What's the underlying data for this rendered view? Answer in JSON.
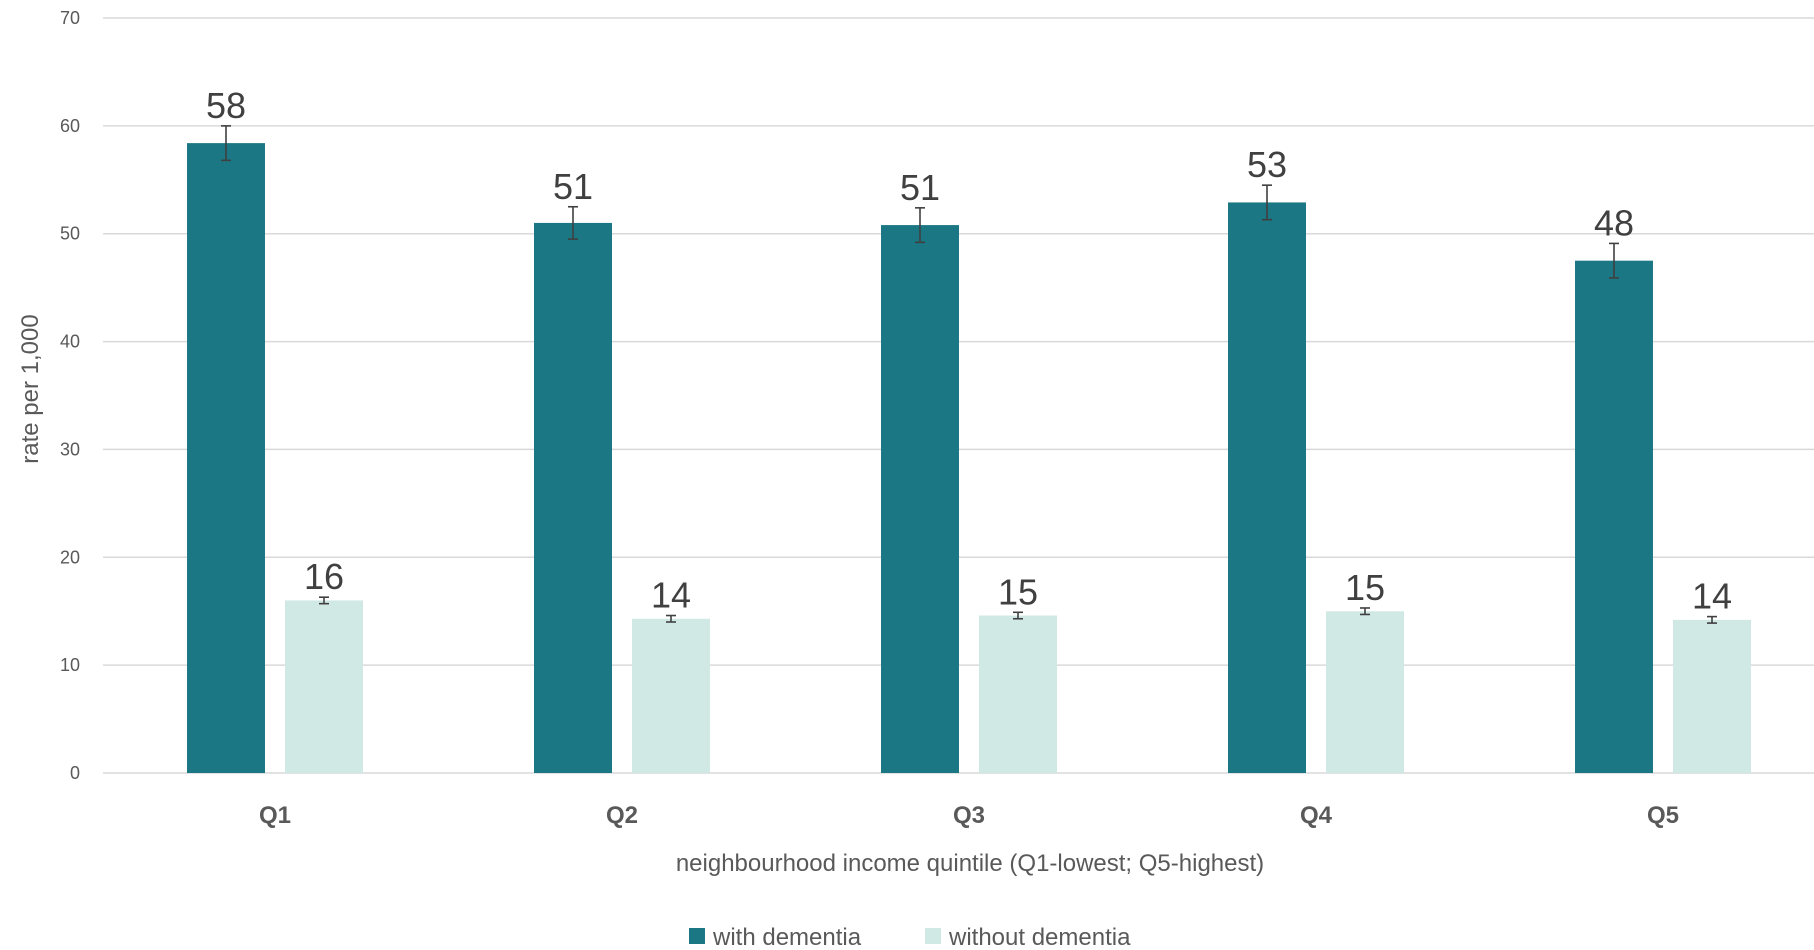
{
  "chart_data": {
    "type": "bar",
    "categories": [
      "Q1",
      "Q2",
      "Q3",
      "Q4",
      "Q5"
    ],
    "series": [
      {
        "name": "with dementia",
        "color": "#1a7783",
        "values": [
          58.4,
          51.0,
          50.8,
          52.9,
          47.5
        ],
        "labels": [
          "58",
          "51",
          "51",
          "53",
          "48"
        ],
        "error_low": [
          56.8,
          49.5,
          49.2,
          51.3,
          45.9
        ],
        "error_high": [
          60.0,
          52.5,
          52.4,
          54.5,
          49.1
        ]
      },
      {
        "name": "without dementia",
        "color": "#d1e9e5",
        "values": [
          16.0,
          14.3,
          14.6,
          15.0,
          14.2
        ],
        "labels": [
          "16",
          "14",
          "15",
          "15",
          "14"
        ],
        "error_low": [
          15.7,
          14.0,
          14.3,
          14.7,
          13.9
        ],
        "error_high": [
          16.3,
          14.6,
          14.9,
          15.3,
          14.5
        ]
      }
    ],
    "xlabel": "neighbourhood income quintile (Q1-lowest; Q5-highest)",
    "ylabel": "rate per 1,000",
    "ylim": [
      0,
      70
    ],
    "yticks": [
      "0",
      "10",
      "20",
      "30",
      "40",
      "50",
      "60",
      "70"
    ],
    "grid": true,
    "legend_position": "bottom-center",
    "error_bars": true
  }
}
